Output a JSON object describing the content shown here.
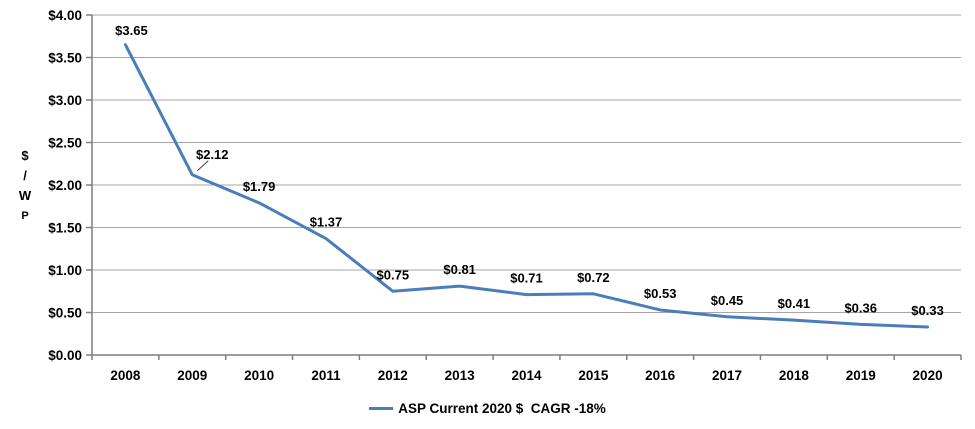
{
  "chart_data": {
    "type": "line",
    "categories": [
      "2008",
      "2009",
      "2010",
      "2011",
      "2012",
      "2013",
      "2014",
      "2015",
      "2016",
      "2017",
      "2018",
      "2019",
      "2020"
    ],
    "series": [
      {
        "name": "ASP Current 2020 $  CAGR -18%",
        "values": [
          3.65,
          2.12,
          1.79,
          1.37,
          0.75,
          0.81,
          0.71,
          0.72,
          0.53,
          0.45,
          0.41,
          0.36,
          0.33
        ],
        "labels": [
          "$3.65",
          "$2.12",
          "$1.79",
          "$1.37",
          "$0.75",
          "$0.81",
          "$0.71",
          "$0.72",
          "$0.53",
          "$0.45",
          "$0.41",
          "$0.36",
          "$0.33"
        ]
      }
    ],
    "title": "",
    "xlabel": "",
    "ylabel": "$/Wp",
    "ylabel_chars": [
      "$",
      "/",
      "W",
      "P"
    ],
    "ylim": [
      0,
      4
    ],
    "ytick_step": 0.5,
    "ytick_labels": [
      "$0.00",
      "$0.50",
      "$1.00",
      "$1.50",
      "$2.00",
      "$2.50",
      "$3.00",
      "$3.50",
      "$4.00"
    ],
    "grid": true,
    "legend_position": "bottom",
    "colors": {
      "line": "#4A7EBB",
      "gridline": "#A6A6A6",
      "axis": "#7F7F7F",
      "leader": "#404040",
      "text": "#000000",
      "background": "#FFFFFF"
    }
  }
}
